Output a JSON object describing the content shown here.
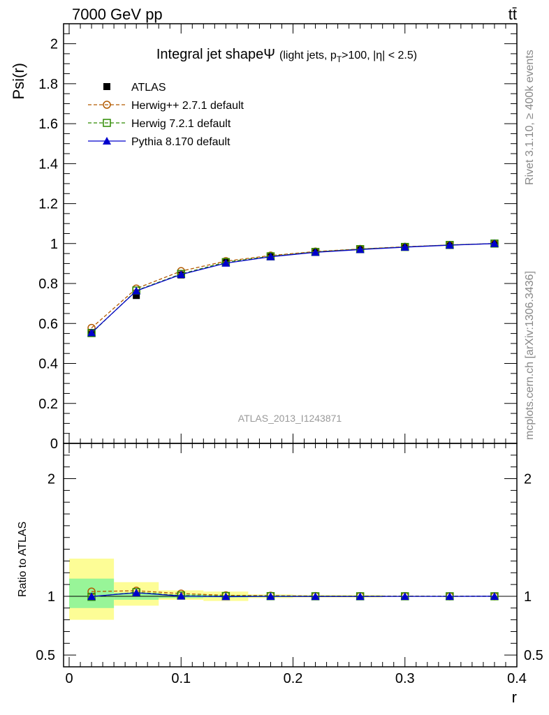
{
  "header": {
    "energy_label": "7000 GeV pp",
    "process_label": "tt̄",
    "side_label_top": "Rivet 3.1.10, ≥ 400k events",
    "side_label_bottom": "mcplots.cern.ch [arXiv:1306.3436]",
    "analysis_id": "ATLAS_2013_I1243871"
  },
  "chart_data": [
    {
      "type": "line",
      "title": "Integral jet shapeΨ",
      "subtitle": "(light jets, p_T>100, |η| < 2.5)",
      "ylabel": "Psi(r)",
      "xlabel": "",
      "xlim": [
        -0.005,
        0.4
      ],
      "ylim": [
        0,
        2.1
      ],
      "x_ticks": [
        0,
        0.1,
        0.2,
        0.3,
        0.4
      ],
      "y_ticks": [
        0,
        0.2,
        0.4,
        0.6,
        0.8,
        1,
        1.2,
        1.4,
        1.6,
        1.8,
        2
      ],
      "y_tick_labels": [
        "0",
        "0.2",
        "0.4",
        "0.6",
        "0.8",
        "1",
        "1.2",
        "1.4",
        "1.6",
        "1.8",
        "2"
      ],
      "legend_position": "top-left",
      "x": [
        0.02,
        0.06,
        0.1,
        0.14,
        0.18,
        0.22,
        0.26,
        0.3,
        0.34,
        0.38
      ],
      "series": [
        {
          "name": "ATLAS",
          "color": "#000000",
          "marker": "square-filled",
          "style": "none",
          "values": [
            0.555,
            0.74,
            0.843,
            0.905,
            0.935,
            0.958,
            0.972,
            0.983,
            0.993,
            1.0
          ]
        },
        {
          "name": "Herwig++ 2.7.1 default",
          "color": "#b35a00",
          "marker": "circle-open",
          "style": "dashed",
          "values": [
            0.578,
            0.775,
            0.862,
            0.912,
            0.94,
            0.96,
            0.973,
            0.984,
            0.993,
            1.0
          ]
        },
        {
          "name": "Herwig 7.2.1 default",
          "color": "#2d8a00",
          "marker": "square-open",
          "style": "dashed",
          "values": [
            0.552,
            0.765,
            0.848,
            0.907,
            0.936,
            0.958,
            0.972,
            0.983,
            0.993,
            1.0
          ]
        },
        {
          "name": "Pythia 8.170 default",
          "color": "#0000cc",
          "marker": "triangle-filled",
          "style": "solid",
          "values": [
            0.554,
            0.763,
            0.845,
            0.902,
            0.934,
            0.956,
            0.97,
            0.982,
            0.992,
            1.0
          ]
        }
      ]
    },
    {
      "type": "line",
      "title": "",
      "ylabel": "Ratio to ATLAS",
      "xlabel": "r",
      "xlim": [
        -0.005,
        0.4
      ],
      "ylim": [
        0.4,
        2.3
      ],
      "x_ticks": [
        0,
        0.1,
        0.2,
        0.3,
        0.4
      ],
      "x_tick_labels": [
        "0",
        "0.1",
        "0.2",
        "0.3",
        "0.4"
      ],
      "y_ticks": [
        0.5,
        1,
        2
      ],
      "y_tick_labels": [
        "0.5",
        "1",
        "2"
      ],
      "bands": {
        "x_edges": [
          0,
          0.04,
          0.08,
          0.12,
          0.16,
          0.2,
          0.24,
          0.28,
          0.32,
          0.36,
          0.4
        ],
        "inner_low": [
          0.9,
          0.97,
          0.985,
          0.99,
          0.993,
          0.995,
          0.996,
          0.998,
          0.999,
          1.0
        ],
        "inner_high": [
          1.15,
          1.03,
          1.015,
          1.01,
          1.007,
          1.005,
          1.004,
          1.002,
          1.001,
          1.0
        ],
        "outer_low": [
          0.8,
          0.92,
          0.97,
          0.96,
          0.985,
          0.99,
          0.99,
          0.996,
          0.998,
          1.0
        ],
        "outer_high": [
          1.32,
          1.12,
          1.05,
          1.04,
          1.015,
          1.01,
          1.01,
          1.004,
          1.002,
          1.0
        ]
      },
      "x": [
        0.02,
        0.06,
        0.1,
        0.14,
        0.18,
        0.22,
        0.26,
        0.3,
        0.34,
        0.38
      ],
      "series": [
        {
          "name": "Herwig++ 2.7.1 default",
          "color": "#b35a00",
          "marker": "circle-open",
          "style": "dashed",
          "values": [
            1.04,
            1.047,
            1.023,
            1.008,
            1.005,
            1.002,
            1.001,
            1.001,
            1.0,
            1.0
          ]
        },
        {
          "name": "Herwig 7.2.1 default",
          "color": "#2d8a00",
          "marker": "square-open",
          "style": "dashed",
          "values": [
            0.995,
            1.034,
            1.006,
            1.002,
            1.001,
            1.0,
            1.0,
            1.0,
            1.0,
            1.0
          ]
        },
        {
          "name": "Pythia 8.170 default",
          "color": "#0000cc",
          "marker": "triangle-filled",
          "style": "solid",
          "values": [
            0.998,
            1.03,
            1.002,
            0.997,
            0.999,
            0.998,
            0.998,
            0.999,
            0.999,
            1.0
          ]
        }
      ]
    }
  ]
}
